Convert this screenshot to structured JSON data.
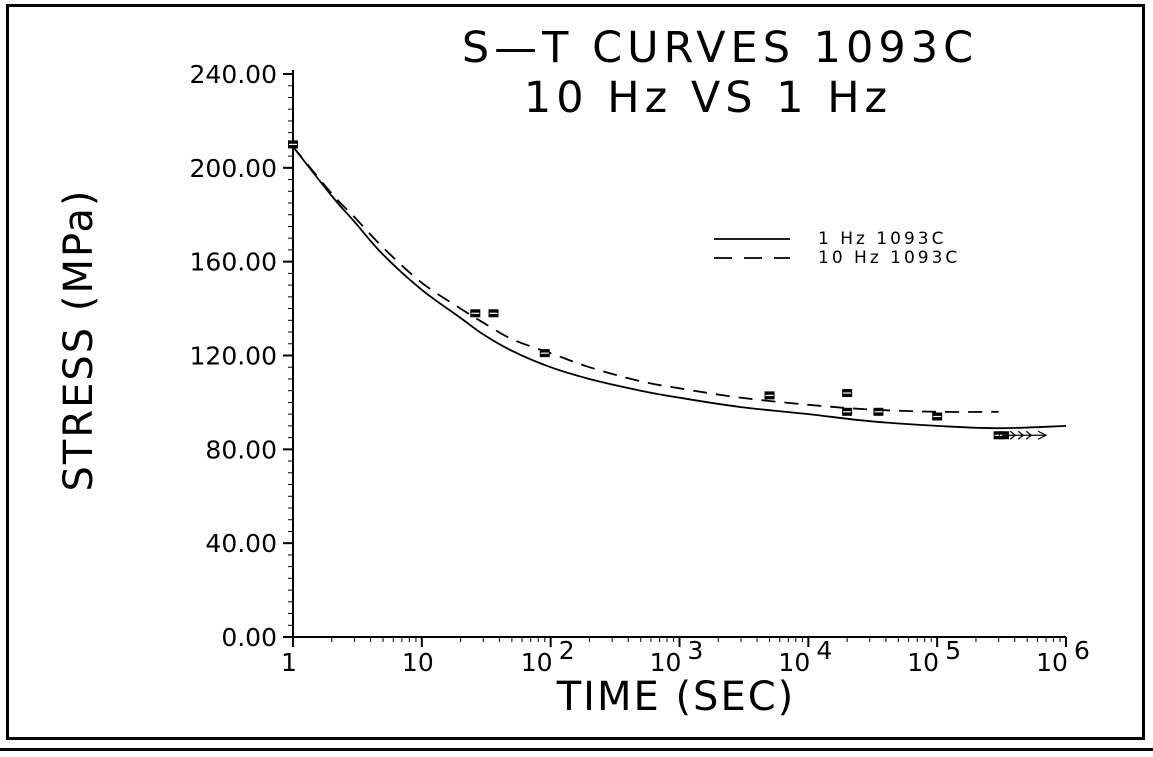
{
  "chart_data": {
    "type": "line",
    "title": [
      "S—T  CURVES  1093C",
      "10  Hz  VS  1  Hz"
    ],
    "xlabel": "TIME  (SEC)",
    "ylabel": "STRESS (MPa)",
    "xscale": "log",
    "xlim": [
      1,
      1000000
    ],
    "ylim": [
      0,
      240
    ],
    "x_ticks": [
      {
        "value": 1,
        "base": "1",
        "exp": ""
      },
      {
        "value": 10,
        "base": "10",
        "exp": ""
      },
      {
        "value": 100,
        "base": "10",
        "exp": "2"
      },
      {
        "value": 1000,
        "base": "10",
        "exp": "3"
      },
      {
        "value": 10000,
        "base": "10",
        "exp": "4"
      },
      {
        "value": 100000,
        "base": "10",
        "exp": "5"
      },
      {
        "value": 1000000,
        "base": "10",
        "exp": "6"
      }
    ],
    "y_ticks": [
      {
        "value": 0,
        "label": "0.00"
      },
      {
        "value": 40,
        "label": "40.00"
      },
      {
        "value": 80,
        "label": "80.00"
      },
      {
        "value": 120,
        "label": "120.00"
      },
      {
        "value": 160,
        "label": "160.00"
      },
      {
        "value": 200,
        "label": "200.00"
      },
      {
        "value": 240,
        "label": "240.00"
      }
    ],
    "legend_position": "upper-right",
    "series": [
      {
        "name": "1 Hz  1093C",
        "style": "solid",
        "x": [
          1,
          2,
          3,
          5,
          10,
          20,
          30,
          50,
          100,
          200,
          500,
          1000,
          3000,
          10000,
          30000,
          100000,
          300000,
          1000000
        ],
        "y": [
          209,
          188,
          177,
          163,
          148,
          136,
          129,
          122,
          115,
          110,
          105,
          102,
          98,
          95,
          92,
          90,
          89,
          90
        ]
      },
      {
        "name": "10 Hz  1093C",
        "style": "dashed",
        "x": [
          1,
          2,
          3,
          5,
          10,
          20,
          30,
          50,
          100,
          200,
          500,
          1000,
          3000,
          10000,
          30000,
          100000,
          300000
        ],
        "y": [
          209,
          189,
          179,
          166,
          151,
          140,
          134,
          127,
          121,
          115,
          109,
          106,
          102,
          99,
          97,
          96,
          96
        ]
      }
    ],
    "points": [
      {
        "x": 1,
        "y": 210
      },
      {
        "x": 26,
        "y": 138
      },
      {
        "x": 36,
        "y": 138
      },
      {
        "x": 90,
        "y": 121
      },
      {
        "x": 5000,
        "y": 103
      },
      {
        "x": 20000,
        "y": 104
      },
      {
        "x": 20000,
        "y": 96
      },
      {
        "x": 35000,
        "y": 96
      },
      {
        "x": 100000,
        "y": 94
      },
      {
        "x": 300000,
        "y": 86
      },
      {
        "x": 330000,
        "y": 86
      }
    ],
    "runout_arrow": {
      "x_start": 320000,
      "x_end": 700000,
      "y": 86
    }
  }
}
